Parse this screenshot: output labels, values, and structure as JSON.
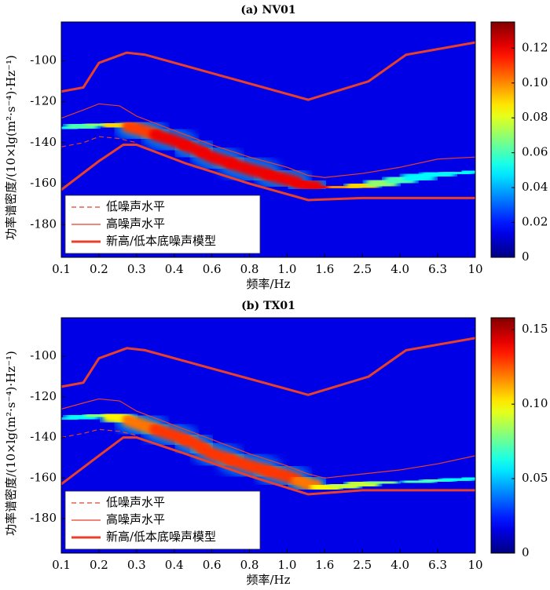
{
  "chart_data": [
    {
      "type": "pdf",
      "title": "(a) NV01",
      "xlabel": "频率/Hz",
      "ylabel": "功率谱密度/(10×lg(m²·s⁻⁴)·Hz⁻¹)",
      "xlim": [
        0.1,
        10
      ],
      "xticks": [
        0.1,
        0.2,
        0.3,
        0.4,
        0.6,
        0.8,
        {
          "value": 1,
          "label": "1.0"
        },
        1.6,
        2.5,
        {
          "value": 4,
          "label": "4.0"
        },
        6.3,
        10
      ],
      "ylim": [
        -196,
        -81
      ],
      "yticks": [
        -180,
        -160,
        -140,
        -120,
        -100
      ],
      "zlim": [
        0,
        0.135
      ],
      "zticks": [
        0,
        0.02,
        0.04,
        0.06,
        0.08,
        {
          "value": 0.1,
          "label": "0.10"
        },
        0.12
      ],
      "pdf_mode": {
        "x": [
          0.1,
          0.15,
          0.2,
          0.25,
          0.3,
          0.4,
          0.5,
          0.6,
          0.8,
          1.0,
          1.3,
          1.6,
          2.0,
          2.5,
          3.2,
          4,
          5,
          6.3,
          8,
          10
        ],
        "y": [
          -133,
          -132,
          -131,
          -131,
          -133,
          -139,
          -143,
          -147,
          -153,
          -158,
          -161,
          -162,
          -162,
          -161,
          -160,
          -158,
          -157,
          -155,
          -155,
          -154
        ],
        "z": [
          0.05,
          0.06,
          0.07,
          0.09,
          0.11,
          0.12,
          0.12,
          0.12,
          0.12,
          0.12,
          0.12,
          0.12,
          0.1,
          0.09,
          0.07,
          0.06,
          0.05,
          0.05,
          0.05,
          0.05
        ]
      },
      "series": [
        {
          "name": "低噪声水平",
          "color": "#e8402a",
          "style": "dashed",
          "lines": [
            {
              "x": [
                0.1,
                0.15,
                0.2,
                0.25,
                0.3
              ],
              "values": [
                -142,
                -140,
                -137,
                -138,
                -140
              ]
            }
          ]
        },
        {
          "name": "高噪声水平",
          "color": "#e8402a",
          "style": "thin",
          "lines": [
            {
              "x": [
                0.1,
                0.15,
                0.2,
                0.25,
                0.3,
                0.4,
                0.6,
                0.8,
                1,
                1.3,
                1.6,
                2.5,
                4,
                6.3,
                10
              ],
              "values": [
                -128,
                -124,
                -121,
                -122,
                -127,
                -134,
                -141,
                -147,
                -152,
                -156,
                -157,
                -155,
                -152,
                -148,
                -147
              ]
            }
          ]
        },
        {
          "name": "新高/低本底噪声模型",
          "color": "#e8402a",
          "style": "thick",
          "lines": [
            {
              "x": [
                0.1,
                0.15,
                0.2,
                0.27,
                0.32,
                1.3,
                2.7,
                4.3,
                10
              ],
              "values": [
                -115,
                -113,
                -101,
                -96,
                -97,
                -119,
                -110,
                -97,
                -91
              ]
            },
            {
              "x": [
                0.1,
                0.2,
                0.26,
                0.3,
                0.45,
                0.8,
                1.3,
                2.5,
                10
              ],
              "values": [
                -163,
                -149,
                -141,
                -141,
                -150,
                -160,
                -168,
                -167,
                -167
              ]
            }
          ]
        }
      ],
      "legend": "lower left"
    },
    {
      "type": "pdf",
      "title": "(b) TX01",
      "xlabel": "频率/Hz",
      "ylabel": "功率谱密度/(10×lg(m²·s⁻⁴)·Hz⁻¹)",
      "xlim": [
        0.1,
        10
      ],
      "xticks": [
        0.1,
        0.2,
        0.3,
        0.4,
        0.6,
        0.8,
        {
          "value": 1,
          "label": "1.0"
        },
        1.6,
        2.5,
        {
          "value": 4,
          "label": "4.0"
        },
        6.3,
        10
      ],
      "ylim": [
        -197,
        -81
      ],
      "yticks": [
        -180,
        -160,
        -140,
        -120,
        -100
      ],
      "zlim": [
        0,
        0.158
      ],
      "zticks": [
        0,
        {
          "value": 0.05,
          "label": "0.05"
        },
        {
          "value": 0.1,
          "label": "0.10"
        },
        0.15
      ],
      "pdf_mode": {
        "x": [
          0.1,
          0.15,
          0.2,
          0.25,
          0.3,
          0.4,
          0.5,
          0.6,
          0.8,
          1.0,
          1.3,
          1.6,
          2.0,
          2.5,
          3.2,
          4,
          5,
          6.3,
          8,
          10
        ],
        "y": [
          -131,
          -130,
          -129,
          -130,
          -133,
          -139,
          -143,
          -148,
          -154,
          -159,
          -163,
          -165,
          -164,
          -163,
          -162,
          -162,
          -162,
          -161,
          -161,
          -160
        ],
        "z": [
          0.05,
          0.06,
          0.08,
          0.1,
          0.12,
          0.13,
          0.13,
          0.13,
          0.13,
          0.13,
          0.12,
          0.1,
          0.09,
          0.09,
          0.08,
          0.08,
          0.07,
          0.07,
          0.06,
          0.06
        ]
      },
      "series": [
        {
          "name": "低噪声水平",
          "color": "#e8402a",
          "style": "dashed",
          "lines": [
            {
              "x": [
                0.1,
                0.15,
                0.2,
                0.25,
                0.3
              ],
              "values": [
                -140,
                -138,
                -136,
                -137,
                -139
              ]
            }
          ]
        },
        {
          "name": "高噪声水平",
          "color": "#e8402a",
          "style": "thin",
          "lines": [
            {
              "x": [
                0.1,
                0.15,
                0.2,
                0.25,
                0.3,
                0.4,
                0.6,
                0.8,
                1,
                1.3,
                1.6,
                2.5,
                4,
                6.3,
                10
              ],
              "values": [
                -126,
                -123,
                -121,
                -122,
                -127,
                -134,
                -141,
                -148,
                -154,
                -158,
                -160,
                -158,
                -156,
                -153,
                -149
              ]
            }
          ]
        },
        {
          "name": "新高/低本底噪声模型",
          "color": "#e8402a",
          "style": "thick",
          "lines": [
            {
              "x": [
                0.1,
                0.15,
                0.2,
                0.27,
                0.32,
                1.3,
                2.7,
                4.3,
                10
              ],
              "values": [
                -115,
                -113,
                -101,
                -96,
                -97,
                -119,
                -110,
                -97,
                -91
              ]
            },
            {
              "x": [
                0.1,
                0.2,
                0.26,
                0.3,
                0.45,
                0.8,
                1.3,
                2.5,
                10
              ],
              "values": [
                -163,
                -149,
                -140,
                -140,
                -148,
                -159,
                -168,
                -166,
                -166
              ]
            }
          ]
        }
      ],
      "legend": "lower left"
    }
  ]
}
